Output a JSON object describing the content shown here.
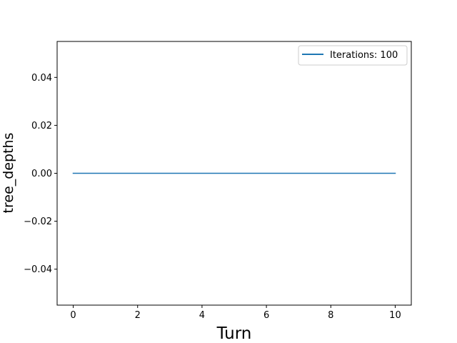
{
  "chart_data": {
    "type": "line",
    "title": "",
    "xlabel": "Turn",
    "ylabel": "tree_depths",
    "xlim": [
      -0.5,
      10.5
    ],
    "ylim": [
      -0.055,
      0.055
    ],
    "x_ticks": [
      0,
      2,
      4,
      6,
      8,
      10
    ],
    "x_tick_labels": [
      "0",
      "2",
      "4",
      "6",
      "8",
      "10"
    ],
    "y_ticks": [
      -0.04,
      -0.02,
      0.0,
      0.02,
      0.04
    ],
    "y_tick_labels": [
      "−0.04",
      "−0.02",
      "0.00",
      "0.02",
      "0.04"
    ],
    "grid": false,
    "legend_position": "top-right",
    "series": [
      {
        "name": "Iterations: 100",
        "color": "#1f77b4",
        "x": [
          0,
          1,
          2,
          3,
          4,
          5,
          6,
          7,
          8,
          9,
          10
        ],
        "y": [
          0,
          0,
          0,
          0,
          0,
          0,
          0,
          0,
          0,
          0,
          0
        ]
      }
    ]
  }
}
